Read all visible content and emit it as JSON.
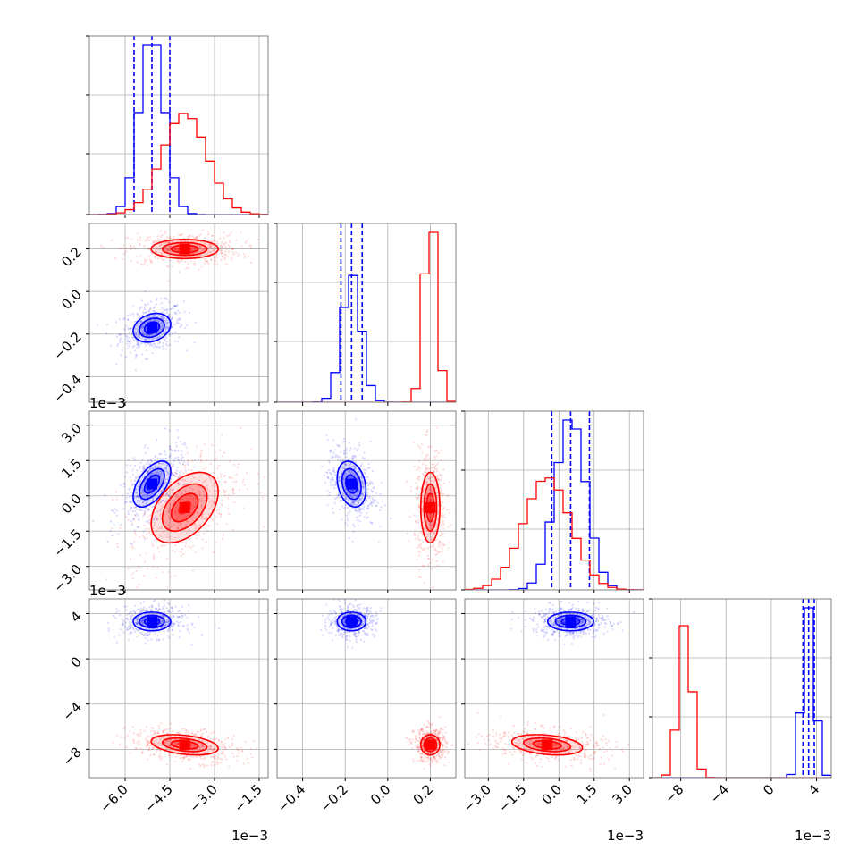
{
  "chart_data": {
    "type": "corner",
    "grid": true,
    "colors": {
      "blue": "#0000ff",
      "red": "#ff0000"
    },
    "parameters": [
      {
        "range": [
          -7.2,
          -1.2
        ],
        "ticks": [
          -6.0,
          -4.5,
          -3.0,
          -1.5
        ],
        "tick_labels": [
          "−6.0",
          "−4.5",
          "−3.0",
          "−1.5"
        ],
        "multiplier": "1e−3"
      },
      {
        "range": [
          -0.52,
          0.32
        ],
        "ticks": [
          -0.4,
          -0.2,
          0.0,
          0.2
        ],
        "tick_labels": [
          "−0.4",
          "−0.2",
          "0.0",
          "0.2"
        ],
        "multiplier": ""
      },
      {
        "range": [
          -4.0,
          3.6
        ],
        "ticks": [
          -3.0,
          -1.5,
          0.0,
          1.5,
          3.0
        ],
        "tick_labels": [
          "−3.0",
          "−1.5",
          "0.0",
          "1.5",
          "3.0"
        ],
        "multiplier": "1e−3"
      },
      {
        "range": [
          -10.5,
          5.3
        ],
        "ticks": [
          -8,
          -4,
          0,
          4
        ],
        "tick_labels": [
          "−8",
          "−4",
          "0",
          "4"
        ],
        "multiplier": "1e−3"
      }
    ],
    "series": [
      {
        "color": "#0000ff",
        "mean": [
          -5.1,
          -0.17,
          0.5,
          3.3
        ],
        "sd": [
          0.42,
          0.045,
          0.65,
          0.55
        ],
        "rho": [
          [
            0,
            1,
            0.25
          ],
          [
            0,
            2,
            0.55
          ],
          [
            0,
            3,
            0.0
          ],
          [
            1,
            2,
            -0.25
          ],
          [
            1,
            3,
            0.0
          ],
          [
            2,
            3,
            0.0
          ]
        ],
        "quantiles": [
          [
            -5.7,
            -5.1,
            -4.5
          ],
          [
            -0.22,
            -0.17,
            -0.12
          ],
          [
            -0.3,
            0.5,
            1.3
          ],
          [
            2.8,
            3.3,
            3.8
          ]
        ]
      },
      {
        "color": "#ff0000",
        "mean": [
          -4.0,
          0.2,
          -0.5,
          -7.6
        ],
        "sd": [
          0.75,
          0.03,
          1.0,
          0.6
        ],
        "rho": [
          [
            0,
            1,
            0.0
          ],
          [
            0,
            2,
            0.45
          ],
          [
            0,
            3,
            -0.35
          ],
          [
            1,
            2,
            0.0
          ],
          [
            1,
            3,
            0.0
          ],
          [
            2,
            3,
            -0.3
          ]
        ],
        "quantiles": []
      }
    ],
    "hist_bins": 20,
    "contour_levels": [
      0.3,
      0.6,
      1.0,
      1.5
    ]
  }
}
